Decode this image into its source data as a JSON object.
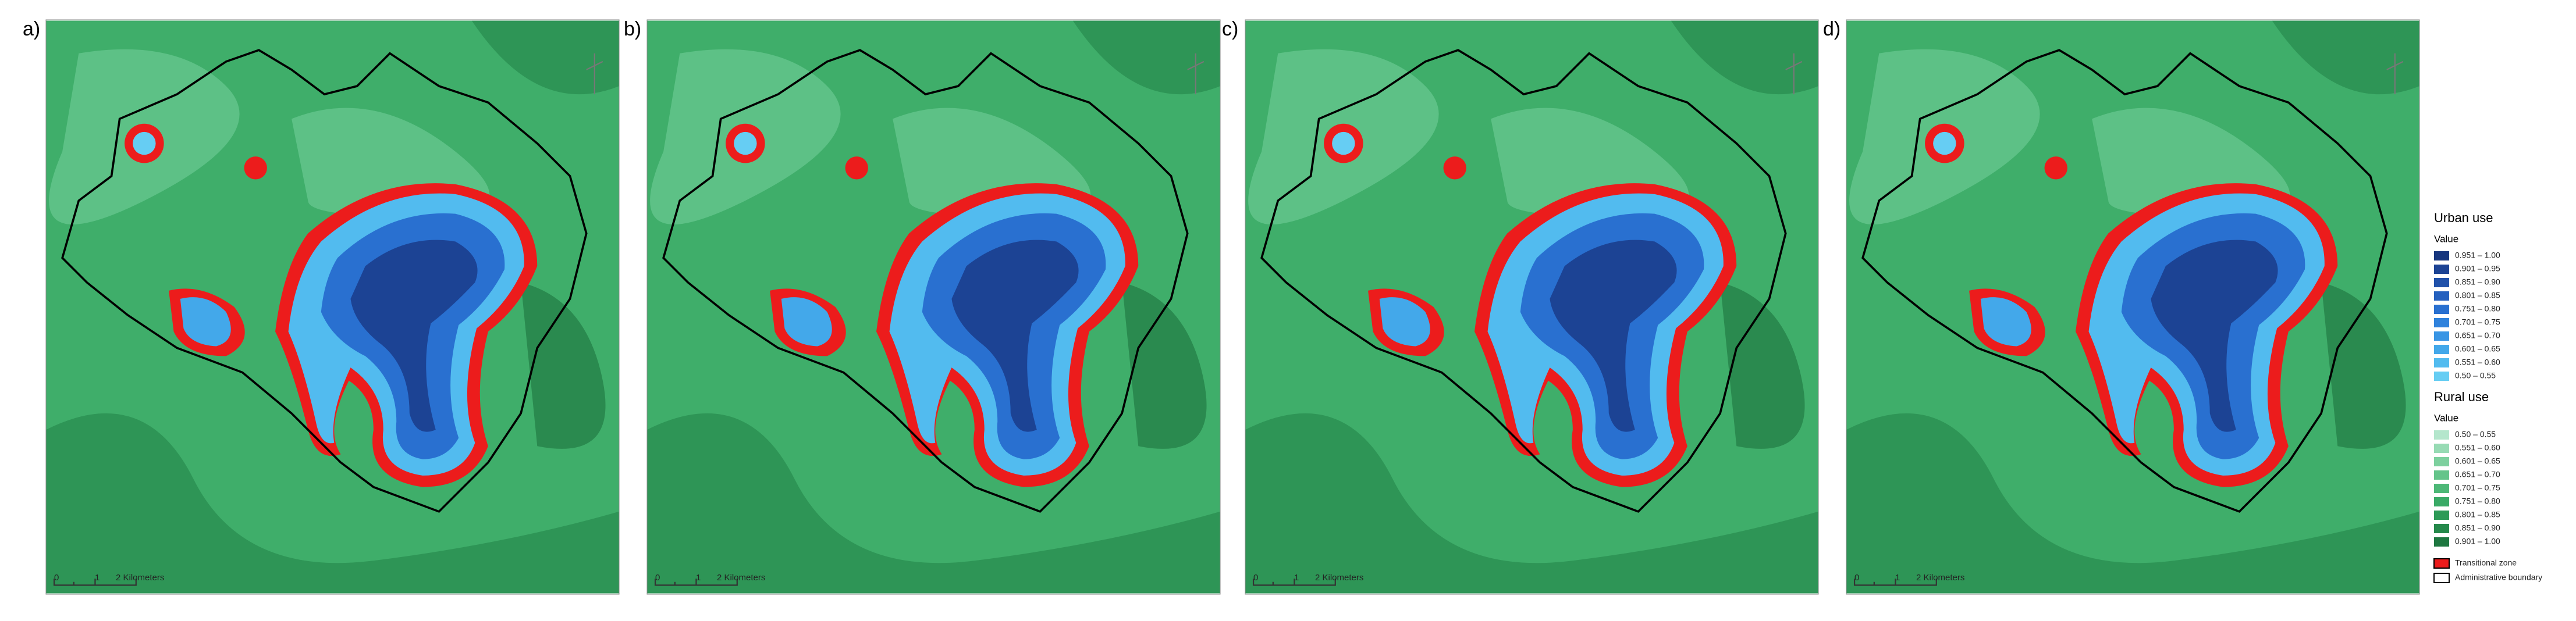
{
  "panels": [
    {
      "label": "a)"
    },
    {
      "label": "b)"
    },
    {
      "label": "c)"
    },
    {
      "label": "d)"
    }
  ],
  "scale_bar": {
    "labels": [
      "0",
      "1",
      "2 Kilometers"
    ]
  },
  "legend": {
    "urban": {
      "title": "Urban use",
      "subtitle": "Value",
      "items": [
        {
          "label": "0.951 – 1.00",
          "color": "#17367e"
        },
        {
          "label": "0.901 – 0.95",
          "color": "#1c4394"
        },
        {
          "label": "0.851 – 0.90",
          "color": "#2051aa"
        },
        {
          "label": "0.801 – 0.85",
          "color": "#2460be"
        },
        {
          "label": "0.751 – 0.80",
          "color": "#2970d0"
        },
        {
          "label": "0.701 – 0.75",
          "color": "#2f82dc"
        },
        {
          "label": "0.651 – 0.70",
          "color": "#3895e4"
        },
        {
          "label": "0.601 – 0.65",
          "color": "#43a8ea"
        },
        {
          "label": "0.551 – 0.60",
          "color": "#52bbef"
        },
        {
          "label": "0.50 – 0.55",
          "color": "#66cdf3"
        }
      ]
    },
    "rural": {
      "title": "Rural use",
      "subtitle": "Value",
      "items": [
        {
          "label": "0.50 – 0.55",
          "color": "#b4e6cc"
        },
        {
          "label": "0.551 – 0.60",
          "color": "#97dbb4"
        },
        {
          "label": "0.601 – 0.65",
          "color": "#7dd09e"
        },
        {
          "label": "0.651 – 0.70",
          "color": "#64c48a"
        },
        {
          "label": "0.701 – 0.75",
          "color": "#4db877"
        },
        {
          "label": "0.751 – 0.80",
          "color": "#3aaa66"
        },
        {
          "label": "0.801 – 0.85",
          "color": "#2d9a57"
        },
        {
          "label": "0.851 – 0.90",
          "color": "#25894b"
        },
        {
          "label": "0.901 – 1.00",
          "color": "#1e7740"
        }
      ]
    },
    "extra": [
      {
        "label": "Transitional zone",
        "color": "#ec1c1c"
      },
      {
        "label": "Administrative boundary",
        "color": "#ffffff"
      }
    ]
  }
}
